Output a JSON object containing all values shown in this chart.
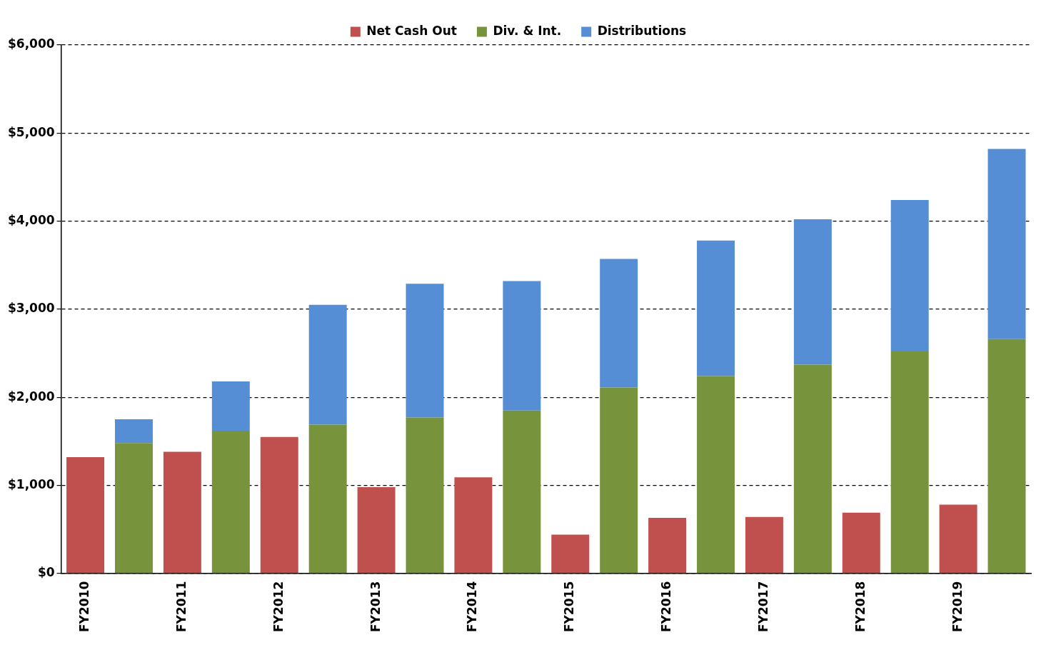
{
  "chart_data": {
    "type": "bar",
    "stacked": true,
    "legend": "top",
    "grid": "y",
    "categories": [
      "FY2010",
      null,
      "FY2011",
      null,
      "FY2012",
      null,
      "FY2013",
      null,
      "FY2014",
      null,
      "FY2015",
      null,
      "FY2016",
      null,
      "FY2017",
      null,
      "FY2018",
      null,
      "FY2019",
      null
    ],
    "series": [
      {
        "name": "Net Cash Out",
        "color": "#c0504d",
        "values": [
          1320,
          null,
          1380,
          null,
          1550,
          null,
          980,
          null,
          1090,
          null,
          440,
          null,
          630,
          null,
          640,
          null,
          690,
          null,
          780,
          null
        ]
      },
      {
        "name": "Div. & Int.",
        "color": "#77933c",
        "values": [
          null,
          1480,
          null,
          1620,
          null,
          1690,
          null,
          1770,
          null,
          1850,
          null,
          2110,
          null,
          2240,
          null,
          2370,
          null,
          2520,
          null,
          2660
        ]
      },
      {
        "name": "Distributions",
        "color": "#558ed5",
        "values": [
          null,
          270,
          null,
          560,
          null,
          1360,
          null,
          1520,
          null,
          1470,
          null,
          1460,
          null,
          1540,
          null,
          1650,
          null,
          1720,
          null,
          2160
        ]
      }
    ],
    "ylim": [
      0,
      6000
    ],
    "yticks": [
      {
        "value": 0,
        "label": "$0"
      },
      {
        "value": 1000,
        "label": "$1,000"
      },
      {
        "value": 2000,
        "label": "$2,000"
      },
      {
        "value": 3000,
        "label": "$3,000"
      },
      {
        "value": 4000,
        "label": "$4,000"
      },
      {
        "value": 5000,
        "label": "$5,000"
      },
      {
        "value": 6000,
        "label": "$6,000"
      }
    ]
  }
}
